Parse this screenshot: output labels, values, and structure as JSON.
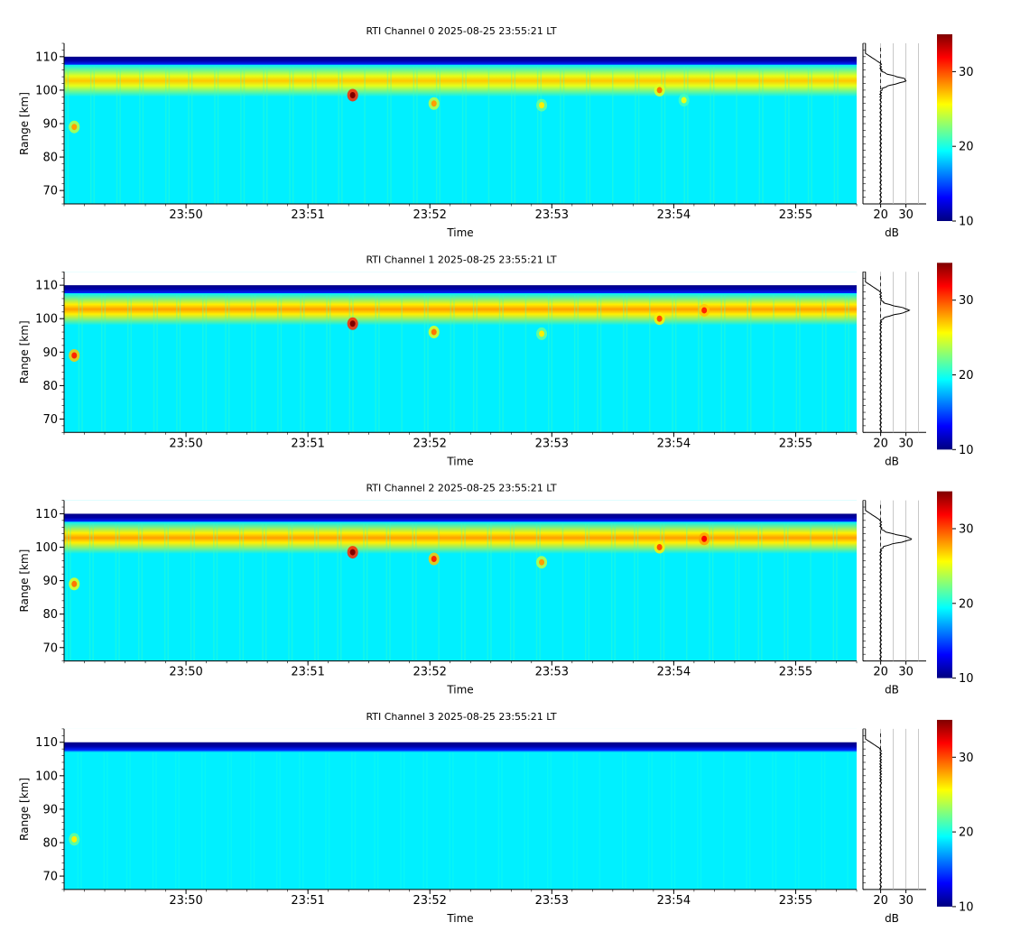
{
  "colors": {
    "colormap": [
      "#00007f",
      "#0000ff",
      "#007fff",
      "#00ffff",
      "#7fff7f",
      "#ffff00",
      "#ff7f00",
      "#ff0000",
      "#7f0000"
    ],
    "background_field": "#1e8cff",
    "profile_line": "#000000"
  },
  "chart_data": [
    {
      "type": "heatmap",
      "title": "RTI Channel 0 2025-08-25 23:55:21 LT",
      "xlabel": "Time",
      "ylabel": "Range [km]",
      "x_ticks": [
        "23:50",
        "23:51",
        "23:52",
        "23:53",
        "23:54",
        "23:55"
      ],
      "y_ticks": [
        70,
        80,
        90,
        100,
        110
      ],
      "ylim": [
        66,
        114
      ],
      "xlim": [
        "23:49:00",
        "23:55:30"
      ],
      "layer": {
        "top_km": 110,
        "band_center_km": 102.8,
        "band_width_km": 2.4,
        "band_strength_db": 27,
        "background_db": 19
      },
      "echoes": [
        {
          "time": "23:49:05",
          "range_km": 89,
          "strength_db": 28
        },
        {
          "time": "23:51:22",
          "range_km": 98.5,
          "strength_db": 35
        },
        {
          "time": "23:52:02",
          "range_km": 96,
          "strength_db": 28
        },
        {
          "time": "23:52:55",
          "range_km": 95.5,
          "strength_db": 26
        },
        {
          "time": "23:53:53",
          "range_km": 100,
          "strength_db": 29
        },
        {
          "time": "23:54:05",
          "range_km": 97,
          "strength_db": 25
        }
      ],
      "profile_peak": {
        "range_km": 103,
        "db": 30
      },
      "colorbar": {
        "label": "",
        "ticks": [
          10,
          20,
          30
        ],
        "range": [
          10,
          35
        ]
      },
      "profile_axis": {
        "xlabel": "dB",
        "ticks": [
          20,
          30
        ]
      }
    },
    {
      "type": "heatmap",
      "title": "RTI Channel 1 2025-08-25 23:55:21 LT",
      "xlabel": "Time",
      "ylabel": "Range [km]",
      "x_ticks": [
        "23:50",
        "23:51",
        "23:52",
        "23:53",
        "23:54",
        "23:55"
      ],
      "y_ticks": [
        70,
        80,
        90,
        100,
        110
      ],
      "ylim": [
        66,
        114
      ],
      "xlim": [
        "23:49:00",
        "23:55:30"
      ],
      "layer": {
        "top_km": 110,
        "band_center_km": 102.8,
        "band_width_km": 2.4,
        "band_strength_db": 28,
        "background_db": 19
      },
      "echoes": [
        {
          "time": "23:49:05",
          "range_km": 89,
          "strength_db": 31
        },
        {
          "time": "23:51:22",
          "range_km": 98.5,
          "strength_db": 35
        },
        {
          "time": "23:52:02",
          "range_km": 96,
          "strength_db": 29
        },
        {
          "time": "23:52:55",
          "range_km": 95.5,
          "strength_db": 26
        },
        {
          "time": "23:53:53",
          "range_km": 100,
          "strength_db": 30
        },
        {
          "time": "23:54:15",
          "range_km": 102.5,
          "strength_db": 31
        }
      ],
      "profile_peak": {
        "range_km": 102.5,
        "db": 31
      },
      "colorbar": {
        "label": "",
        "ticks": [
          10,
          20,
          30
        ],
        "range": [
          10,
          35
        ]
      },
      "profile_axis": {
        "xlabel": "dB",
        "ticks": [
          20,
          30
        ]
      }
    },
    {
      "type": "heatmap",
      "title": "RTI Channel 2 2025-08-25 23:55:21 LT",
      "xlabel": "Time",
      "ylabel": "Range [km]",
      "x_ticks": [
        "23:50",
        "23:51",
        "23:52",
        "23:53",
        "23:54",
        "23:55"
      ],
      "y_ticks": [
        70,
        80,
        90,
        100,
        110
      ],
      "ylim": [
        66,
        114
      ],
      "xlim": [
        "23:49:00",
        "23:55:30"
      ],
      "layer": {
        "top_km": 110,
        "band_center_km": 102.8,
        "band_width_km": 2.4,
        "band_strength_db": 28,
        "background_db": 19
      },
      "echoes": [
        {
          "time": "23:49:05",
          "range_km": 89,
          "strength_db": 29
        },
        {
          "time": "23:51:22",
          "range_km": 98.5,
          "strength_db": 35
        },
        {
          "time": "23:52:02",
          "range_km": 96.5,
          "strength_db": 31
        },
        {
          "time": "23:52:55",
          "range_km": 95.5,
          "strength_db": 28
        },
        {
          "time": "23:53:53",
          "range_km": 100,
          "strength_db": 30
        },
        {
          "time": "23:54:15",
          "range_km": 102.5,
          "strength_db": 32
        }
      ],
      "profile_peak": {
        "range_km": 102.5,
        "db": 32
      },
      "colorbar": {
        "label": "",
        "ticks": [
          10,
          20,
          30
        ],
        "range": [
          10,
          35
        ]
      },
      "profile_axis": {
        "xlabel": "dB",
        "ticks": [
          20,
          30
        ]
      }
    },
    {
      "type": "heatmap",
      "title": "RTI Channel 3 2025-08-25 23:55:21 LT",
      "xlabel": "Time",
      "ylabel": "Range [km]",
      "x_ticks": [
        "23:50",
        "23:51",
        "23:52",
        "23:53",
        "23:54",
        "23:55"
      ],
      "y_ticks": [
        70,
        80,
        90,
        100,
        110
      ],
      "ylim": [
        66,
        114
      ],
      "xlim": [
        "23:49:00",
        "23:55:30"
      ],
      "layer": {
        "top_km": 110,
        "band_center_km": 102.8,
        "band_width_km": 2.4,
        "band_strength_db": 19,
        "background_db": 19
      },
      "echoes": [
        {
          "time": "23:49:05",
          "range_km": 81,
          "strength_db": 26
        }
      ],
      "profile_peak": {
        "range_km": 100,
        "db": 20
      },
      "colorbar": {
        "label": "",
        "ticks": [
          10,
          20,
          30
        ],
        "range": [
          10,
          35
        ]
      },
      "profile_axis": {
        "xlabel": "dB",
        "ticks": [
          20,
          30
        ]
      }
    }
  ]
}
